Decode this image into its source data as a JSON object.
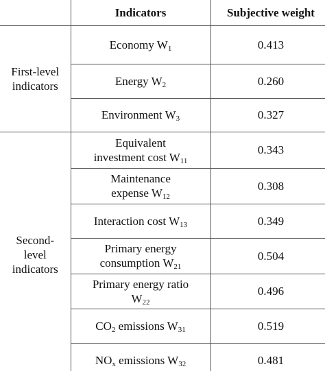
{
  "table": {
    "header": [
      "",
      "Indicators",
      "Subjective weight"
    ],
    "groups": [
      {
        "label": [
          "First-level",
          "indicators"
        ],
        "rows": [
          {
            "indicator": [
              [
                {
                  "t": "Economy W"
                },
                {
                  "sub": "1"
                }
              ]
            ],
            "weight": "0.413"
          },
          {
            "indicator": [
              [
                {
                  "t": "Energy W"
                },
                {
                  "sub": "2"
                }
              ]
            ],
            "weight": "0.260"
          },
          {
            "indicator": [
              [
                {
                  "t": "Environment W"
                },
                {
                  "sub": "3"
                }
              ]
            ],
            "weight": "0.327"
          }
        ]
      },
      {
        "label": [
          "Second-",
          "level",
          "indicators"
        ],
        "rows": [
          {
            "indicator": [
              [
                {
                  "t": "Equivalent"
                }
              ],
              [
                {
                  "t": "investment cost W"
                },
                {
                  "sub": "11"
                }
              ]
            ],
            "weight": "0.343"
          },
          {
            "indicator": [
              [
                {
                  "t": "Maintenance"
                }
              ],
              [
                {
                  "t": "expense W"
                },
                {
                  "sub": "12"
                }
              ]
            ],
            "weight": "0.308"
          },
          {
            "indicator": [
              [
                {
                  "t": "Interaction cost W"
                },
                {
                  "sub": "13"
                }
              ]
            ],
            "weight": "0.349"
          },
          {
            "indicator": [
              [
                {
                  "t": "Primary energy"
                }
              ],
              [
                {
                  "t": "consumption W"
                },
                {
                  "sub": "21"
                }
              ]
            ],
            "weight": "0.504"
          },
          {
            "indicator": [
              [
                {
                  "t": "Primary energy ratio"
                }
              ],
              [
                {
                  "t": "W"
                },
                {
                  "sub": "22"
                }
              ]
            ],
            "weight": "0.496"
          },
          {
            "indicator": [
              [
                {
                  "t": "CO"
                },
                {
                  "sub": "2"
                },
                {
                  "t": " emissions W"
                },
                {
                  "sub": "31"
                }
              ]
            ],
            "weight": "0.519"
          },
          {
            "indicator": [
              [
                {
                  "t": "NO"
                },
                {
                  "sub": "x"
                },
                {
                  "t": " emissions W"
                },
                {
                  "sub": "32"
                }
              ]
            ],
            "weight": "0.481"
          }
        ]
      }
    ]
  }
}
